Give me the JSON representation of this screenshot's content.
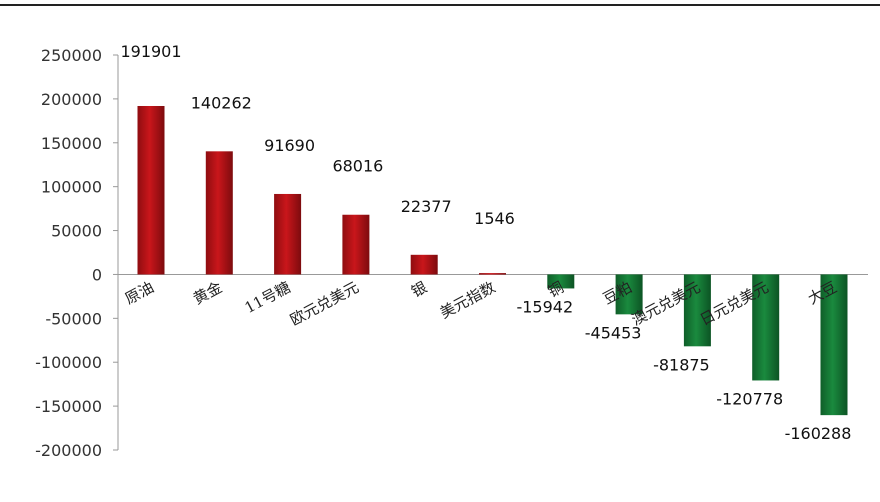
{
  "chart_data": {
    "type": "bar",
    "title": "",
    "xlabel": "",
    "ylabel": "",
    "ylim": [
      -200000,
      250000
    ],
    "yticks": [
      250000,
      200000,
      150000,
      100000,
      50000,
      0,
      -50000,
      -100000,
      -150000,
      -200000
    ],
    "ytick_labels": [
      "250000",
      "200000",
      "150000",
      "100000",
      "50000",
      "0",
      "-50000",
      "-100000",
      "-150000",
      "-200000"
    ],
    "grid": false,
    "legend": "none",
    "categories": [
      "原油",
      "黄金",
      "11号糖",
      "欧元兑美元",
      "银",
      "美元指数",
      "铜",
      "豆粕",
      "澳元兑美元",
      "日元兑美元",
      "大豆"
    ],
    "values": [
      191901,
      140262,
      91690,
      68016,
      22377,
      1546,
      -15942,
      -45453,
      -81875,
      -120778,
      -160288
    ],
    "data_labels": [
      "191901",
      "140262",
      "91690",
      "68016",
      "22377",
      "1546",
      "-15942",
      "-45453",
      "-81875",
      "-120778",
      "-160288"
    ],
    "colors": {
      "positive": "#c9161b",
      "negative": "#1a8a3e",
      "axis": "#999999"
    }
  }
}
